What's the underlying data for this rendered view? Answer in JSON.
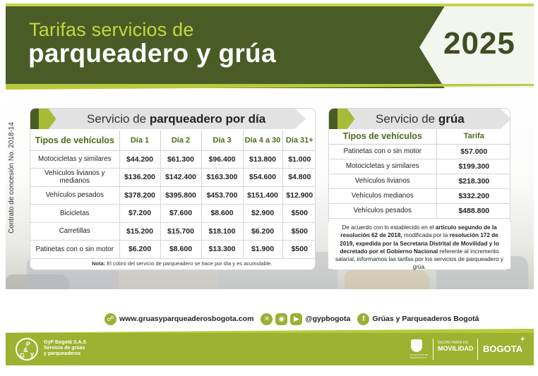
{
  "header": {
    "title_line1": "Tarifas servicios de",
    "title_line2": "parqueadero y grúa",
    "year": "2025"
  },
  "contract": "Contrato de concesión No. 2018-14",
  "parking": {
    "title_regular": "Servicio de ",
    "title_bold": "parqueadero por día",
    "columns": [
      "Tipos de vehículos",
      "Día 1",
      "Día 2",
      "Día 3",
      "Día 4 a 30",
      "Día 31+"
    ],
    "rows": [
      [
        "Motocicletas y similares",
        "$44.200",
        "$61.300",
        "$96.400",
        "$13.800",
        "$1.000"
      ],
      [
        "Vehículos livianos y medianos",
        "$136.200",
        "$142.400",
        "$163.300",
        "$54.600",
        "$4.800"
      ],
      [
        "Vehículos pesados",
        "$378.200",
        "$395.800",
        "$453.700",
        "$151.400",
        "$12.900"
      ],
      [
        "Bicicletas",
        "$7.200",
        "$7.600",
        "$8.600",
        "$2.900",
        "$500"
      ],
      [
        "Carretillas",
        "$15.200",
        "$15.700",
        "$18.100",
        "$6.200",
        "$500"
      ],
      [
        "Patinetas con o sin motor",
        "$6.200",
        "$8.600",
        "$13.300",
        "$1.900",
        "$500"
      ]
    ],
    "note_bold": "Nota:",
    "note_text": " El cobro del servicio de parqueadero se hace por día y es acumulable."
  },
  "tow": {
    "title_regular": "Servicio de ",
    "title_bold": "grúa",
    "columns": [
      "Tipos de vehículos",
      "Tarifa"
    ],
    "rows": [
      [
        "Patinetas con o sin motor",
        "$57.000"
      ],
      [
        "Motocicletas y similares",
        "$199.300"
      ],
      [
        "Vehículos livianos",
        "$218.300"
      ],
      [
        "Vehículos medianos",
        "$332.200"
      ],
      [
        "Vehículos pesados",
        "$488.800"
      ]
    ]
  },
  "legal": {
    "p1": "De acuerdo con lo establecido en el ",
    "b1": "artículo segundo de la resolución 62 de 2018,",
    "p2": " modificada por la ",
    "b2": "resolución 172 de 2019, expedida por la Secretaría Distrital de Movilidad y lo decretado por el Gobierno Nacional",
    "p3": " referente al incremento salarial, informamos las tarifas por los servicios de parqueadero y grúa."
  },
  "social": {
    "website": "www.gruasyparqueaderosbogota.com",
    "handle": "@gypbogota",
    "facebook": "Grúas y Parqueaderos Bogotá"
  },
  "footer": {
    "company_line1": "GyP Bogotá S.A.S",
    "company_line2": "Servicio de grúas",
    "company_line3": "y parqueaderos",
    "secretaria": "SECRETARÍA DE",
    "movilidad": "MOVILIDAD",
    "alcaldia": "ALCALDÍA MAYOR DE BOGOTÁ D.C.",
    "bogota": "BOGOTA"
  },
  "colors": {
    "dark_green": "#4a5c26",
    "lime": "#c6d640",
    "footer_green": "#9cb230",
    "header_text_green": "#4d6a1c"
  }
}
